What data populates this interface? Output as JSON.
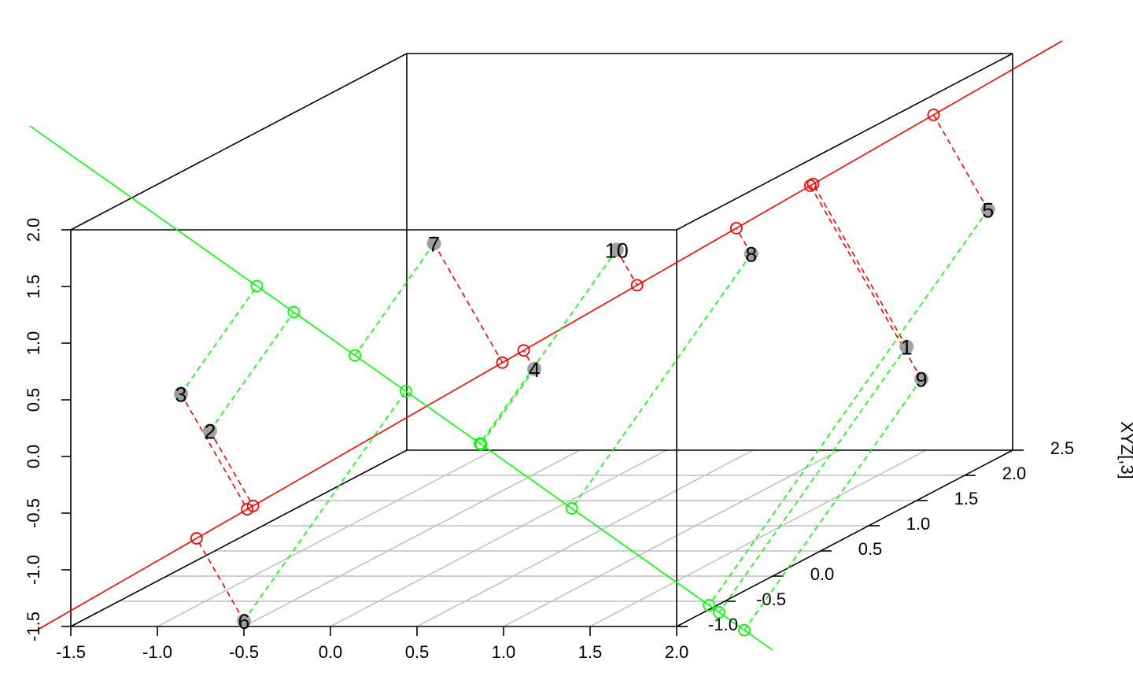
{
  "chart_data": {
    "type": "scatter",
    "subtype": "3d-scatter-with-principal-axes",
    "title": "",
    "xlabel": "",
    "ylabel": "",
    "zlabel": "",
    "right_edge_label": "XYZ[,3]",
    "x_ticks": [
      "-1.5",
      "-1.0",
      "-0.5",
      "0.0",
      "0.5",
      "1.0",
      "1.5",
      "2.0"
    ],
    "y_ticks": [
      "-1.0",
      "-0.5",
      "0.0",
      "0.5",
      "1.0",
      "1.5",
      "2.0",
      "2.5"
    ],
    "z_ticks": [
      "-1.5",
      "-1.0",
      "-0.5",
      "0.0",
      "0.5",
      "1.0",
      "1.5",
      "2.0"
    ],
    "xlim": [
      -1.5,
      2.0
    ],
    "ylim": [
      -1.0,
      2.5
    ],
    "zlim": [
      -1.5,
      2.0
    ],
    "grid": "floor",
    "points": [
      {
        "label": "1",
        "x": 1.72,
        "y": 1.9,
        "z": -0.32
      },
      {
        "label": "2",
        "x": -1.04,
        "y": -0.38,
        "z": -0.05
      },
      {
        "label": "3",
        "x": -1.03,
        "y": -0.7,
        "z": 0.42
      },
      {
        "label": "4",
        "x": 1.15,
        "y": -0.95,
        "z": 0.75
      },
      {
        "label": "5",
        "x": 1.98,
        "y": 2.28,
        "z": 0.72
      },
      {
        "label": "6",
        "x": -0.5,
        "y": -1.0,
        "z": -1.45
      },
      {
        "label": "7",
        "x": -0.5,
        "y": 0.98,
        "z": 1.0
      },
      {
        "label": "8",
        "x": 1.1,
        "y": 1.4,
        "z": 0.72
      },
      {
        "label": "9",
        "x": 2.0,
        "y": 1.55,
        "z": -0.45
      },
      {
        "label": "10",
        "x": 0.6,
        "y": 0.9,
        "z": 0.98
      }
    ],
    "colors": {
      "points": "#a0a0a0",
      "axis1": "#ff0000",
      "axis2": "#00ff00",
      "box": "#000000",
      "grid": "#bebebe"
    }
  }
}
